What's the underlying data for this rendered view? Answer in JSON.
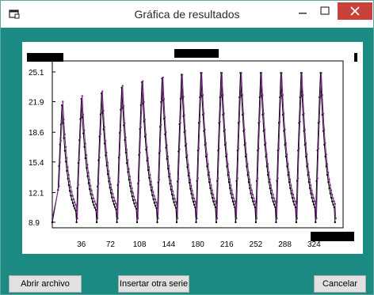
{
  "window": {
    "title": "Gráfica de resultados"
  },
  "buttons": {
    "open_file": "Abrir archivo",
    "insert_series": "Insertar otra serie",
    "cancel": "Cancelar"
  },
  "chart_data": {
    "type": "line",
    "title": "",
    "xlabel": "",
    "ylabel": "",
    "xlim": [
      0,
      360
    ],
    "ylim": [
      8.9,
      25.1
    ],
    "x_ticks": [
      "36",
      "72",
      "108",
      "144",
      "180",
      "216",
      "252",
      "288",
      "324"
    ],
    "y_ticks": [
      "25.1",
      "21.9",
      "18.6",
      "15.4",
      "12.1",
      "8.9"
    ],
    "grid": false,
    "series": [
      {
        "color": "#000000",
        "peaks_x": [
          12,
          36,
          61,
          86,
          111,
          136,
          160,
          184,
          209,
          233,
          258,
          283,
          308,
          332
        ],
        "peaks_y": [
          21.5,
          22.2,
          22.8,
          23.4,
          24.0,
          24.4,
          24.8,
          25.0,
          25.0,
          25.0,
          25.0,
          25.0,
          25.0,
          25.0
        ],
        "trough_y": 8.9
      },
      {
        "color": "#7b2d8b",
        "peaks_x": [
          13,
          37,
          62,
          87,
          112,
          137,
          161,
          185,
          210,
          234,
          259,
          284,
          309,
          333
        ],
        "peaks_y": [
          21.9,
          22.5,
          23.0,
          23.6,
          24.1,
          24.5,
          24.8,
          25.0,
          25.0,
          25.0,
          25.0,
          25.0,
          25.0,
          25.0
        ],
        "trough_y": 9.3
      }
    ]
  }
}
